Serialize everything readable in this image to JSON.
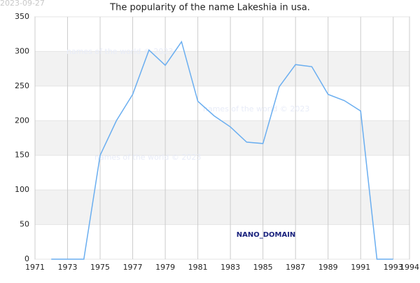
{
  "chart_data": {
    "type": "line",
    "title": "The popularity of the name Lakeshia in usa.",
    "date": "2023-09-27",
    "annotations": [
      "names of the world © 2023",
      "names of the world © 2023",
      "names of the world © 2023",
      "NANO_DOMAIN"
    ],
    "x": [
      1972,
      1973,
      1974,
      1975,
      1976,
      1977,
      1978,
      1979,
      1980,
      1981,
      1982,
      1983,
      1984,
      1985,
      1986,
      1987,
      1988,
      1989,
      1990,
      1991,
      1992,
      1993
    ],
    "series": [
      {
        "name": "Lakeshia",
        "color": "#6aaef0",
        "values": [
          0,
          0,
          0,
          150,
          200,
          238,
          302,
          280,
          314,
          228,
          207,
          191,
          169,
          167,
          249,
          281,
          278,
          238,
          229,
          214,
          0,
          0
        ]
      }
    ],
    "xlim": [
      1971,
      1994
    ],
    "xticks": [
      1971,
      1973,
      1975,
      1977,
      1979,
      1981,
      1983,
      1985,
      1987,
      1989,
      1991,
      1993,
      1994
    ],
    "ylim": [
      0,
      350
    ],
    "yticks": [
      0,
      50,
      100,
      150,
      200,
      250,
      300,
      350
    ],
    "grid": true
  }
}
